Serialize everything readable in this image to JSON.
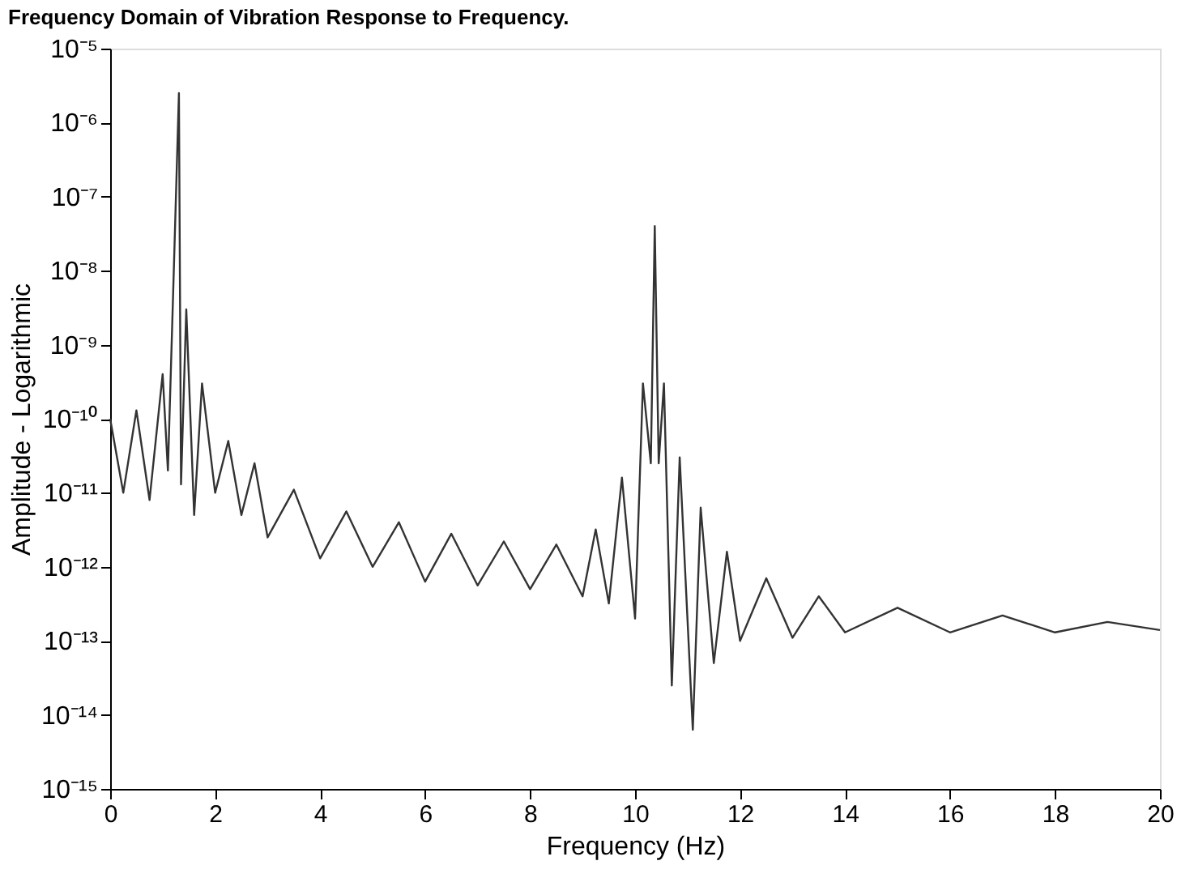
{
  "chart_data": {
    "type": "line",
    "title": "Frequency Domain of Vibration Response to Frequency.",
    "xlabel": "Frequency (Hz)",
    "ylabel": "Amplitude - Logarithmic",
    "log": "y",
    "grid": false,
    "marker": "none",
    "line_style": "solid",
    "xlim": [
      0,
      20
    ],
    "xticks": [
      0,
      2,
      4,
      6,
      8,
      10,
      12,
      14,
      16,
      18,
      20
    ],
    "ylim": [
      1e-15,
      1e-05
    ],
    "yticks": [
      {
        "value": 1e-15,
        "label": "10⁻¹⁵"
      },
      {
        "value": 1e-14,
        "label": "10⁻¹⁴"
      },
      {
        "value": 1e-13,
        "label": "10⁻¹³"
      },
      {
        "value": 1e-12,
        "label": "10⁻¹²"
      },
      {
        "value": 1e-11,
        "label": "10⁻¹¹"
      },
      {
        "value": 1e-10,
        "label": "10⁻¹⁰"
      },
      {
        "value": 1e-09,
        "label": "10⁻⁹"
      },
      {
        "value": 1e-08,
        "label": "10⁻⁸"
      },
      {
        "value": 1e-07,
        "label": "10⁻⁷"
      },
      {
        "value": 1e-06,
        "label": "10⁻⁶"
      },
      {
        "value": 1e-05,
        "label": "10⁻⁵"
      }
    ],
    "series": [
      {
        "color": "#333333",
        "x": [
          0,
          0.25,
          0.5,
          0.75,
          1.0,
          1.1,
          1.2,
          1.31,
          1.35,
          1.45,
          1.6,
          1.75,
          2.0,
          2.25,
          2.5,
          2.75,
          3.0,
          3.5,
          4.0,
          4.5,
          5.0,
          5.5,
          6.0,
          6.5,
          7.0,
          7.5,
          8.0,
          8.5,
          9.0,
          9.25,
          9.5,
          9.75,
          10.0,
          10.15,
          10.3,
          10.375,
          10.45,
          10.55,
          10.7,
          10.85,
          11.1,
          11.25,
          11.5,
          11.75,
          12.0,
          12.5,
          13.0,
          13.5,
          14.0,
          15,
          16,
          17,
          18,
          19,
          20
        ],
        "values": [
          1e-10,
          1e-11,
          1.3e-10,
          8e-12,
          4e-10,
          2e-11,
          5e-09,
          2.5e-06,
          1.3e-11,
          3e-09,
          5e-12,
          3e-10,
          1e-11,
          5e-11,
          5e-12,
          2.5e-11,
          2.5e-12,
          1.1e-11,
          1.3e-12,
          5.6e-12,
          1e-12,
          4e-12,
          6.3e-13,
          2.8e-12,
          5.6e-13,
          2.2e-12,
          5e-13,
          2e-12,
          4e-13,
          3.2e-12,
          3.2e-13,
          1.6e-11,
          2e-13,
          3e-10,
          2.5e-11,
          4e-08,
          2.5e-11,
          3e-10,
          2.5e-14,
          3e-11,
          6.3e-15,
          6.3e-12,
          5e-14,
          1.6e-12,
          1e-13,
          7e-13,
          1.1e-13,
          4e-13,
          1.3e-13,
          2.8e-13,
          1.3e-13,
          2.2e-13,
          1.3e-13,
          1.8e-13,
          1.4e-13
        ]
      }
    ]
  }
}
